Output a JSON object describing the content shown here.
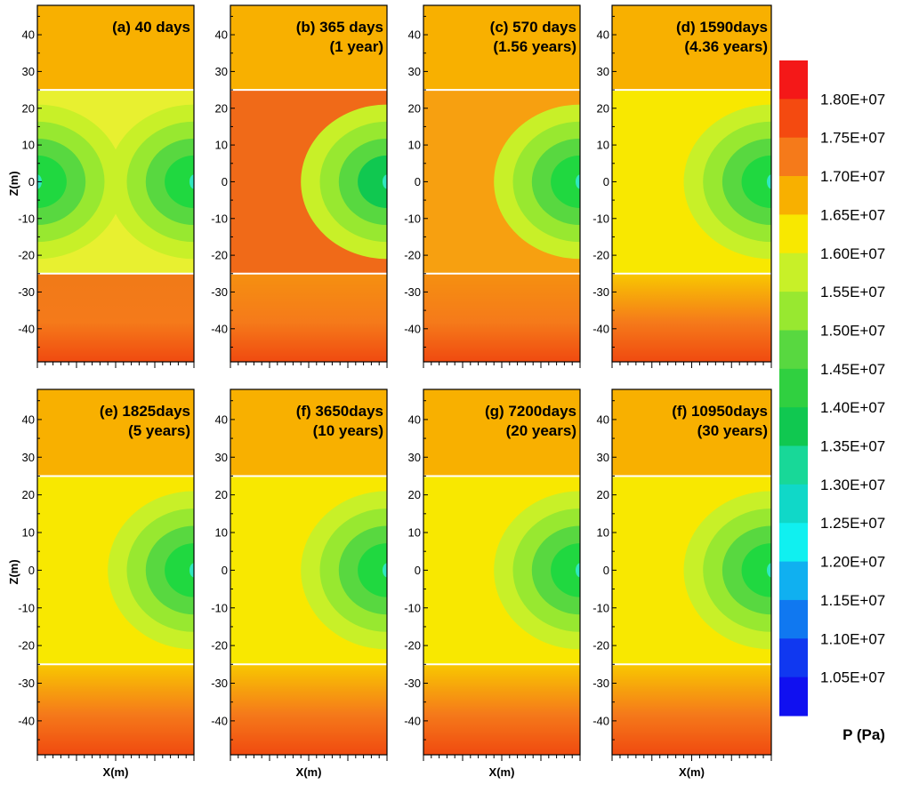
{
  "chart_data": {
    "type": "heatmap",
    "variable_title": "P (Pa)",
    "x_label": "X(m)",
    "z_label": "Z(m)",
    "z_ticks": [
      40,
      30,
      20,
      10,
      0,
      -10,
      -20,
      -30,
      -40
    ],
    "z_tick_labels": [
      "40",
      "30",
      "20",
      "10",
      "0",
      "-10",
      "-20",
      "-30",
      "-40"
    ],
    "z_range": [
      -49,
      48
    ],
    "interface_lines_z": [
      25,
      -25
    ],
    "panels": [
      {
        "id": "a",
        "title_lines": [
          "(a) 40 days"
        ],
        "days": 40,
        "reservoir_min_fill": "#20d840",
        "reservoir_max_fill": "#e8f030",
        "upper_fill": "#f8b000",
        "lower_fill_top": "#f07a18",
        "lower_fill_bottom": "#f04a10"
      },
      {
        "id": "b",
        "title_lines": [
          "(b) 365 days",
          "(1 year)"
        ],
        "days": 365,
        "reservoir_min_fill": "#10c850",
        "reservoir_max_fill": "#f06a18",
        "upper_fill": "#f8b000",
        "lower_fill_top": "#f59010",
        "lower_fill_bottom": "#f04a10"
      },
      {
        "id": "c",
        "title_lines": [
          "(c) 570 days",
          "(1.56 years)"
        ],
        "days": 570,
        "reservoir_min_fill": "#20d840",
        "reservoir_max_fill": "#f7a010",
        "upper_fill": "#f8b000",
        "lower_fill_top": "#f59010",
        "lower_fill_bottom": "#f04a10"
      },
      {
        "id": "d",
        "title_lines": [
          "(d) 1590days",
          "(4.36 years)"
        ],
        "days": 1590,
        "reservoir_min_fill": "#20d840",
        "reservoir_max_fill": "#f8e800",
        "upper_fill": "#f8b000",
        "lower_fill_top": "#f8c800",
        "lower_fill_bottom": "#f04a10"
      },
      {
        "id": "e",
        "title_lines": [
          "(e) 1825days",
          "(5 years)"
        ],
        "days": 1825,
        "reservoir_min_fill": "#20d840",
        "reservoir_max_fill": "#f8e800",
        "upper_fill": "#f8b000",
        "lower_fill_top": "#f8c800",
        "lower_fill_bottom": "#f04a10"
      },
      {
        "id": "f1",
        "title_lines": [
          "(f) 3650days",
          "(10 years)"
        ],
        "days": 3650,
        "reservoir_min_fill": "#20d840",
        "reservoir_max_fill": "#f8e800",
        "upper_fill": "#f8b000",
        "lower_fill_top": "#f8c800",
        "lower_fill_bottom": "#f04a10"
      },
      {
        "id": "g",
        "title_lines": [
          "(g) 7200days",
          "(20 years)"
        ],
        "days": 7200,
        "reservoir_min_fill": "#20d840",
        "reservoir_max_fill": "#f8e800",
        "upper_fill": "#f8b000",
        "lower_fill_top": "#f8c800",
        "lower_fill_bottom": "#f04a10"
      },
      {
        "id": "f2",
        "title_lines": [
          "(f) 10950days",
          "(30 years)"
        ],
        "days": 10950,
        "reservoir_min_fill": "#20d840",
        "reservoir_max_fill": "#f8e800",
        "upper_fill": "#f8b000",
        "lower_fill_top": "#f8c800",
        "lower_fill_bottom": "#f04a10"
      }
    ],
    "colorbar": {
      "labels": [
        "1.80E+07",
        "1.75E+07",
        "1.70E+07",
        "1.65E+07",
        "1.60E+07",
        "1.55E+07",
        "1.50E+07",
        "1.45E+07",
        "1.40E+07",
        "1.35E+07",
        "1.30E+07",
        "1.25E+07",
        "1.20E+07",
        "1.15E+07",
        "1.10E+07",
        "1.05E+07"
      ],
      "colors": [
        "#f41818",
        "#f44a10",
        "#f57a1a",
        "#f8b000",
        "#f8e800",
        "#c8f028",
        "#98e830",
        "#58d840",
        "#30d040",
        "#10c850",
        "#18d898",
        "#10d8c8",
        "#10f0f0",
        "#10b0f0",
        "#1078f0",
        "#1038f0",
        "#1010f0"
      ]
    }
  }
}
